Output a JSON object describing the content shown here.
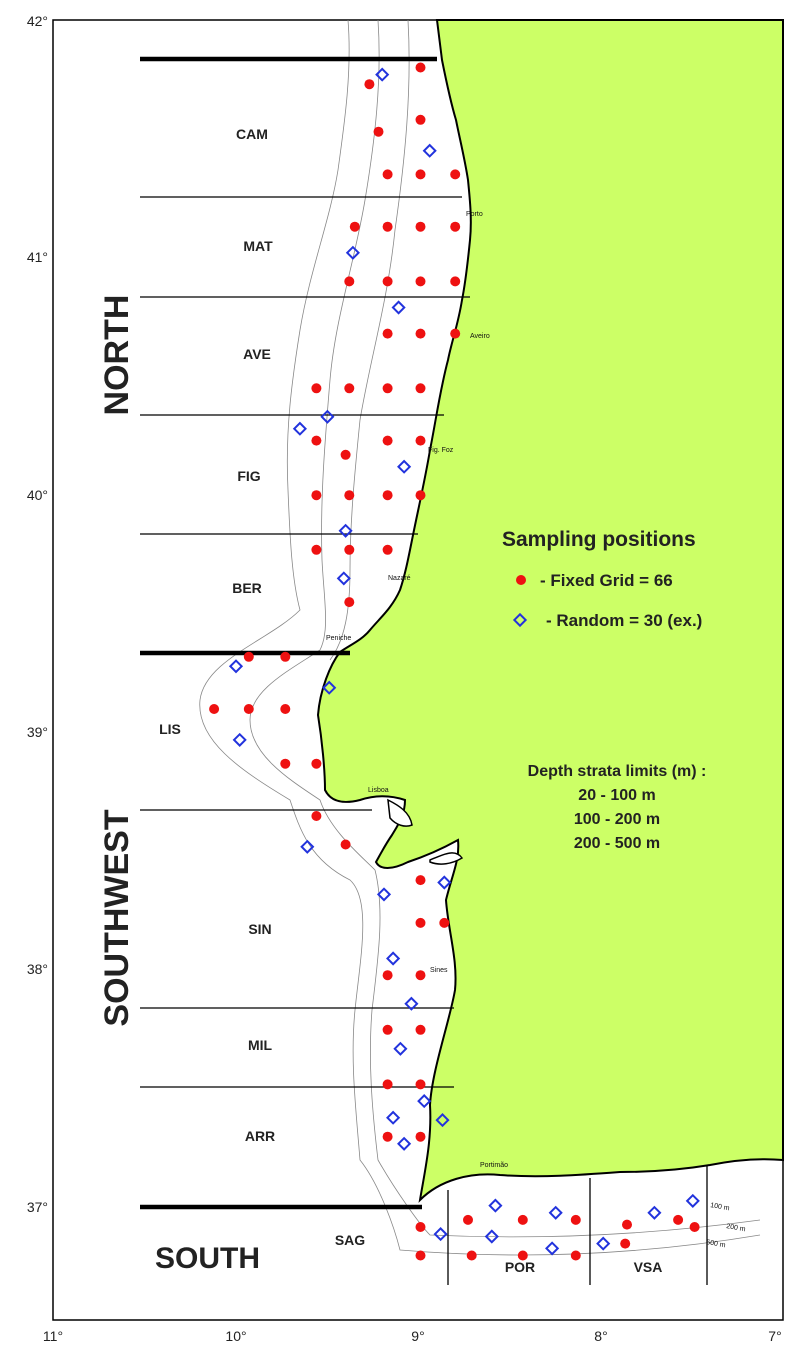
{
  "axes": {
    "lat_ticks": [
      "42°",
      "41°",
      "40°",
      "39°",
      "38°",
      "37°"
    ],
    "lon_ticks": [
      "11°",
      "10°",
      "9°",
      "8°",
      "7°"
    ]
  },
  "regions": [
    "NORTH",
    "SOUTHWEST",
    "SOUTH"
  ],
  "strata": [
    "CAM",
    "MAT",
    "AVE",
    "FIG",
    "BER",
    "LIS",
    "SIN",
    "MIL",
    "ARR",
    "SAG",
    "POR",
    "VSA"
  ],
  "towns": [
    "Porto",
    "Aveiro",
    "Fig. Foz",
    "Nazaré",
    "Peniche",
    "Lisboa",
    "Sines",
    "Portimão"
  ],
  "depth_labels": [
    "100 m",
    "200 m",
    "500 m"
  ],
  "legend": {
    "title": "Sampling positions",
    "fixed": "- Fixed Grid = 66",
    "random": "- Random = 30 (ex.)",
    "depth_title": "Depth strata limits (m) :",
    "depth_1": "20 - 100 m",
    "depth_2": "100 - 200 m",
    "depth_3": "200 - 500 m"
  },
  "colors": {
    "land": "#ccff66",
    "fixed": "#ee1111",
    "random": "#2233dd"
  },
  "fixed_points": [
    [
      41.8,
      -8.99
    ],
    [
      41.73,
      -9.27
    ],
    [
      41.58,
      -8.99
    ],
    [
      41.53,
      -9.22
    ],
    [
      41.35,
      -9.17
    ],
    [
      41.35,
      -8.99
    ],
    [
      41.35,
      -8.8
    ],
    [
      41.13,
      -9.35
    ],
    [
      41.13,
      -9.17
    ],
    [
      41.13,
      -8.99
    ],
    [
      41.13,
      -8.8
    ],
    [
      40.9,
      -9.38
    ],
    [
      40.9,
      -9.17
    ],
    [
      40.9,
      -8.99
    ],
    [
      40.9,
      -8.8
    ],
    [
      40.68,
      -9.17
    ],
    [
      40.68,
      -8.99
    ],
    [
      40.68,
      -8.8
    ],
    [
      40.45,
      -9.56
    ],
    [
      40.45,
      -9.38
    ],
    [
      40.45,
      -9.17
    ],
    [
      40.45,
      -8.99
    ],
    [
      40.23,
      -9.56
    ],
    [
      40.23,
      -9.17
    ],
    [
      40.23,
      -8.99
    ],
    [
      40.17,
      -9.4
    ],
    [
      40.0,
      -9.56
    ],
    [
      40.0,
      -9.38
    ],
    [
      40.0,
      -9.17
    ],
    [
      40.0,
      -8.99
    ],
    [
      39.77,
      -9.56
    ],
    [
      39.77,
      -9.38
    ],
    [
      39.77,
      -9.17
    ],
    [
      39.55,
      -9.38
    ],
    [
      39.32,
      -9.93
    ],
    [
      39.32,
      -9.73
    ],
    [
      39.1,
      -10.12
    ],
    [
      39.1,
      -9.93
    ],
    [
      39.1,
      -9.73
    ],
    [
      38.87,
      -9.73
    ],
    [
      38.87,
      -9.56
    ],
    [
      38.65,
      -9.56
    ],
    [
      38.53,
      -9.4
    ],
    [
      38.38,
      -8.99
    ],
    [
      38.2,
      -8.99
    ],
    [
      38.2,
      -8.86
    ],
    [
      37.98,
      -9.17
    ],
    [
      37.98,
      -8.99
    ],
    [
      37.75,
      -9.17
    ],
    [
      37.75,
      -8.99
    ],
    [
      37.52,
      -9.17
    ],
    [
      37.52,
      -8.99
    ],
    [
      37.3,
      -9.17
    ],
    [
      37.3,
      -8.99
    ],
    [
      36.92,
      -8.99
    ],
    [
      36.8,
      -8.99
    ],
    [
      36.95,
      -8.73
    ],
    [
      36.8,
      -8.71
    ],
    [
      36.95,
      -8.43
    ],
    [
      36.8,
      -8.43
    ],
    [
      36.95,
      -8.14
    ],
    [
      36.8,
      -8.14
    ],
    [
      36.93,
      -7.86
    ],
    [
      36.85,
      -7.87
    ],
    [
      36.95,
      -7.58
    ],
    [
      36.92,
      -7.49
    ]
  ],
  "random_points": [
    [
      41.77,
      -9.2
    ],
    [
      41.45,
      -8.94
    ],
    [
      41.02,
      -9.36
    ],
    [
      40.79,
      -9.11
    ],
    [
      40.33,
      -9.5
    ],
    [
      40.28,
      -9.65
    ],
    [
      40.12,
      -9.08
    ],
    [
      39.85,
      -9.4
    ],
    [
      39.65,
      -9.41
    ],
    [
      39.28,
      -10.0
    ],
    [
      39.19,
      -9.49
    ],
    [
      38.97,
      -9.98
    ],
    [
      38.52,
      -9.61
    ],
    [
      38.37,
      -8.86
    ],
    [
      38.32,
      -9.19
    ],
    [
      38.05,
      -9.14
    ],
    [
      37.86,
      -9.04
    ],
    [
      37.67,
      -9.1
    ],
    [
      37.45,
      -8.97
    ],
    [
      37.38,
      -9.14
    ],
    [
      37.37,
      -8.87
    ],
    [
      37.27,
      -9.08
    ],
    [
      36.89,
      -8.88
    ],
    [
      37.01,
      -8.58
    ],
    [
      36.88,
      -8.6
    ],
    [
      36.98,
      -8.25
    ],
    [
      36.83,
      -8.27
    ],
    [
      36.85,
      -7.99
    ],
    [
      36.98,
      -7.71
    ],
    [
      37.03,
      -7.5
    ]
  ]
}
